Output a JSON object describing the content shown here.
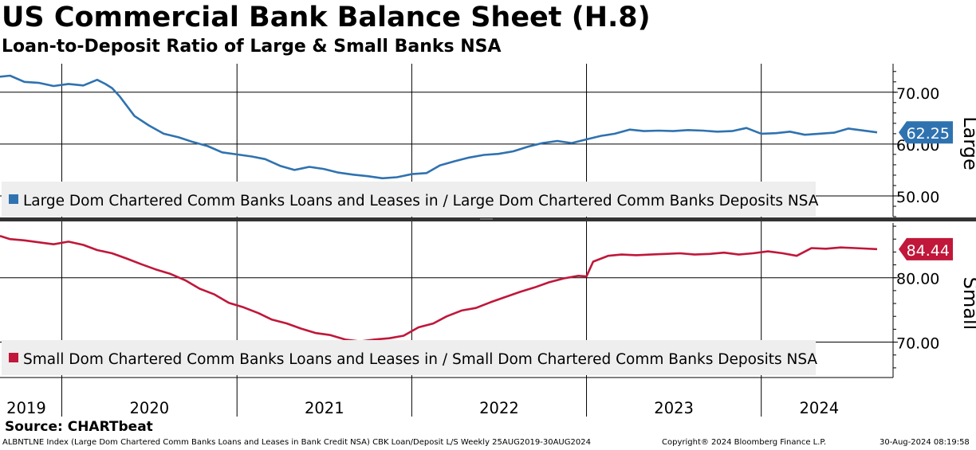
{
  "title": "US Commercial Bank Balance Sheet (H.8)",
  "subtitle": "Loan-to-Deposit Ratio of Large & Small Banks NSA",
  "source": "Source: CHARTbeat",
  "footer": {
    "left": "ALBNTLNE Index (Large Dom Chartered Comm Banks Loans and Leases in Bank Credit NSA) CBK Loan/Deposit L/S  Weekly 25AUG2019-30AUG2024",
    "middle": "Copyright® 2024 Bloomberg Finance L.P.",
    "right": "30-Aug-2024 08:19:58"
  },
  "colors": {
    "large": "#2f72b0",
    "small": "#c0173a",
    "grid": "#000000",
    "legend_bg": "#eeeeee"
  },
  "chart_data": [
    {
      "type": "line",
      "panel": "top",
      "axis_title": "Large",
      "ylim": [
        46,
        75.5
      ],
      "yticks": [
        50,
        60,
        70
      ],
      "ytick_labels": [
        "50.00",
        "60.00",
        "70.00"
      ],
      "last_value_label": "62.25",
      "legend": "Large Dom Chartered Comm Banks Loans and Leases in / Large Dom Chartered Comm Banks Deposits NSA",
      "legend_position": "bottom-left",
      "grid": true,
      "series": [
        {
          "name": "Large Dom Chartered Comm Banks Loans and Leases in / Large Dom Chartered Comm Banks Deposits NSA",
          "x": [
            "2019-08-25",
            "2019-09-15",
            "2019-10-15",
            "2019-11-15",
            "2019-12-15",
            "2020-01-15",
            "2020-02-15",
            "2020-03-15",
            "2020-04-01",
            "2020-04-15",
            "2020-05-01",
            "2020-06-01",
            "2020-07-01",
            "2020-08-01",
            "2020-09-01",
            "2020-10-01",
            "2020-11-01",
            "2020-12-01",
            "2021-01-01",
            "2021-02-01",
            "2021-03-01",
            "2021-04-01",
            "2021-05-01",
            "2021-06-01",
            "2021-07-01",
            "2021-08-01",
            "2021-09-01",
            "2021-10-01",
            "2021-11-01",
            "2021-12-01",
            "2022-01-01",
            "2022-02-01",
            "2022-03-01",
            "2022-04-01",
            "2022-05-01",
            "2022-06-01",
            "2022-07-01",
            "2022-08-01",
            "2022-09-01",
            "2022-10-01",
            "2022-11-01",
            "2022-12-01",
            "2023-01-01",
            "2023-02-01",
            "2023-03-01",
            "2023-04-01",
            "2023-05-01",
            "2023-06-01",
            "2023-07-01",
            "2023-08-01",
            "2023-09-01",
            "2023-10-01",
            "2023-11-01",
            "2023-12-01",
            "2024-01-01",
            "2024-02-01",
            "2024-03-01",
            "2024-04-01",
            "2024-05-01",
            "2024-06-01",
            "2024-07-01",
            "2024-08-30"
          ],
          "y": [
            73,
            73.2,
            72,
            71.8,
            71.2,
            71.6,
            71.3,
            72.4,
            71.6,
            70.8,
            69.2,
            65.4,
            63.6,
            62,
            61.3,
            60.4,
            59.6,
            58.4,
            58,
            57.6,
            57.1,
            55.8,
            55,
            55.6,
            55.2,
            54.5,
            54.1,
            53.8,
            53.4,
            53.6,
            54.2,
            54.4,
            55.9,
            56.7,
            57.4,
            57.9,
            58.1,
            58.6,
            59.5,
            60.2,
            60.6,
            60.2,
            60.9,
            61.6,
            62,
            62.8,
            62.5,
            62.6,
            62.5,
            62.7,
            62.6,
            62.4,
            62.5,
            63.1,
            62.0,
            62.1,
            62.4,
            61.8,
            62.0,
            62.2,
            63.0,
            62.25
          ]
        }
      ]
    },
    {
      "type": "line",
      "panel": "bottom",
      "axis_title": "Small",
      "ylim": [
        64.5,
        88.5
      ],
      "yticks": [
        70,
        80
      ],
      "ytick_labels": [
        "70.00",
        "80.00"
      ],
      "last_value_label": "84.44",
      "legend": "Small Dom Chartered Comm Banks Loans and Leases in / Small Dom Chartered Comm Banks Deposits NSA",
      "legend_position": "bottom-left",
      "grid": true,
      "x_tick_labels": [
        "2019",
        "2020",
        "2021",
        "2022",
        "2023",
        "2024"
      ],
      "series": [
        {
          "name": "Small Dom Chartered Comm Banks Loans and Leases in / Small Dom Chartered Comm Banks Deposits NSA",
          "x": [
            "2019-08-25",
            "2019-09-15",
            "2019-10-15",
            "2019-11-15",
            "2019-12-15",
            "2020-01-15",
            "2020-02-15",
            "2020-03-15",
            "2020-04-15",
            "2020-05-15",
            "2020-06-15",
            "2020-07-15",
            "2020-08-15",
            "2020-09-15",
            "2020-10-15",
            "2020-11-15",
            "2020-12-15",
            "2021-01-15",
            "2021-02-15",
            "2021-03-15",
            "2021-04-15",
            "2021-05-15",
            "2021-06-15",
            "2021-07-15",
            "2021-08-15",
            "2021-09-15",
            "2021-10-15",
            "2021-11-15",
            "2021-12-15",
            "2022-01-15",
            "2022-02-15",
            "2022-03-15",
            "2022-04-15",
            "2022-05-15",
            "2022-06-15",
            "2022-07-15",
            "2022-08-15",
            "2022-09-15",
            "2022-10-15",
            "2022-11-15",
            "2022-12-15",
            "2023-01-01",
            "2023-01-15",
            "2023-02-15",
            "2023-03-15",
            "2023-04-15",
            "2023-05-15",
            "2023-06-15",
            "2023-07-15",
            "2023-08-15",
            "2023-09-15",
            "2023-10-15",
            "2023-11-15",
            "2023-12-15",
            "2024-01-15",
            "2024-02-15",
            "2024-03-15",
            "2024-04-15",
            "2024-05-15",
            "2024-06-15",
            "2024-07-15",
            "2024-08-30"
          ],
          "y": [
            86.5,
            86,
            85.8,
            85.5,
            85.2,
            85.6,
            85.1,
            84.3,
            83.8,
            83.0,
            82.1,
            81.3,
            80.6,
            79.6,
            78.3,
            77.4,
            76.1,
            75.4,
            74.5,
            73.5,
            72.9,
            72.1,
            71.4,
            71.1,
            70.4,
            70.1,
            70.4,
            70.6,
            71.0,
            72.3,
            72.9,
            74.0,
            74.9,
            75.3,
            76.2,
            77.0,
            77.8,
            78.5,
            79.3,
            79.9,
            80.3,
            80.2,
            82.5,
            83.4,
            83.6,
            83.5,
            83.6,
            83.7,
            83.8,
            83.6,
            83.7,
            83.9,
            83.6,
            83.8,
            84.1,
            83.8,
            83.4,
            84.6,
            84.5,
            84.7,
            84.6,
            84.44
          ]
        }
      ]
    }
  ]
}
